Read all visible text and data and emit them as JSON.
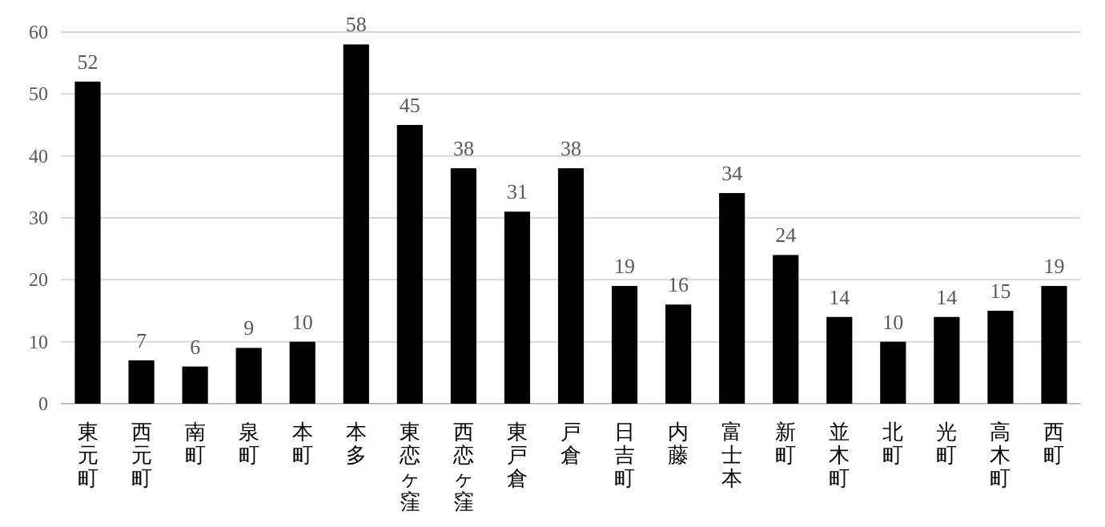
{
  "chart_data": {
    "type": "bar",
    "categories": [
      "東元町",
      "西元町",
      "南町",
      "泉町",
      "本町",
      "本多",
      "東恋ヶ窪",
      "西恋ヶ窪",
      "東戸倉",
      "戸倉",
      "日吉町",
      "内藤",
      "富士本",
      "新町",
      "並木町",
      "北町",
      "光町",
      "高木町",
      "西町"
    ],
    "values": [
      52,
      7,
      6,
      9,
      10,
      58,
      45,
      38,
      31,
      38,
      19,
      16,
      34,
      24,
      14,
      10,
      14,
      15,
      19
    ],
    "color": "#000000",
    "ylim": [
      0,
      60
    ],
    "yticks": [
      0,
      10,
      20,
      30,
      40,
      50,
      60
    ],
    "grid": "y",
    "data_labels": true
  }
}
